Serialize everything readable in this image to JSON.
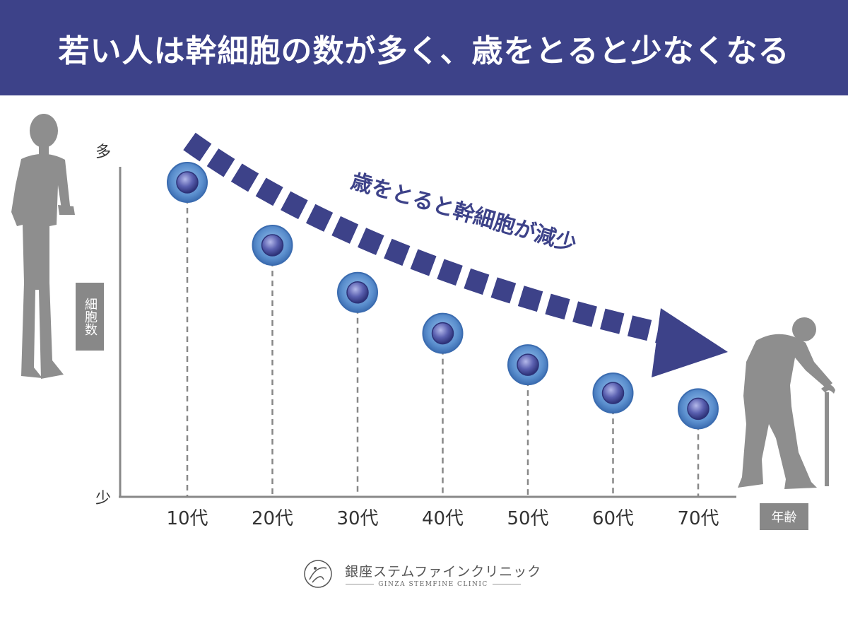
{
  "header": {
    "title": "若い人は幹細胞の数が多く、歳をとると少なくなる"
  },
  "chart_data": {
    "type": "scatter",
    "title": "若い人は幹細胞の数が多く、歳をとると少なくなる",
    "ylabel": "細胞数",
    "xlabel": "年齢",
    "y_axis_top_label": "多",
    "y_axis_bottom_label": "少",
    "categories": [
      "10代",
      "20代",
      "30代",
      "40代",
      "50代",
      "60代",
      "70代"
    ],
    "values": [
      100,
      80,
      65,
      52,
      42,
      33,
      28
    ],
    "ylim": [
      0,
      110
    ],
    "annotation": "歳をとると幹細胞が減少",
    "colors": {
      "accent": "#3d4289",
      "cell_outer": "#5b8fce",
      "cell_inner": "#3e4391",
      "axis": "#888888",
      "silhouette": "#8e8e8e"
    }
  },
  "logo": {
    "name": "銀座ステムファインクリニック",
    "subtitle": "GINZA STEMFINE CLINIC"
  }
}
